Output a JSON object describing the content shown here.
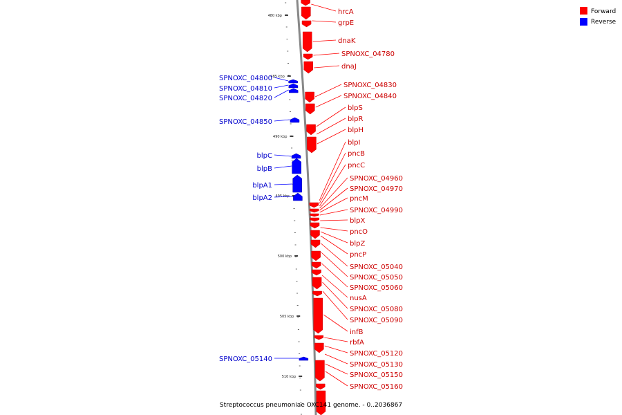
{
  "caption": "Streptococcus pneumoniae OXC141 genome. - 0..2036867",
  "legend": {
    "forward": {
      "label": "Forward",
      "color": "#ff0000"
    },
    "reverse": {
      "label": "Reverse",
      "color": "#0000ff"
    }
  },
  "backbone_color": "#888888",
  "tick_labels": [
    "480 kbp",
    "485 kbp",
    "490 kbp",
    "495 kbp",
    "500 kbp",
    "505 kbp",
    "510 kbp"
  ],
  "forward_genes": [
    "hrcA",
    "grpE",
    "dnaK",
    "SPNOXC_04780",
    "dnaJ",
    "SPNOXC_04830",
    "SPNOXC_04840",
    "blpS",
    "blpR",
    "blpH",
    "blpI",
    "pncB",
    "pncC",
    "SPNOXC_04960",
    "SPNOXC_04970",
    "pncM",
    "SPNOXC_04990",
    "blpX",
    "pncO",
    "blpZ",
    "pncP",
    "SPNOXC_05040",
    "SPNOXC_05050",
    "SPNOXC_05060",
    "nusA",
    "SPNOXC_05080",
    "SPNOXC_05090",
    "infB",
    "rbfA",
    "SPNOXC_05120",
    "SPNOXC_05130",
    "SPNOXC_05150",
    "SPNOXC_05160"
  ],
  "reverse_genes": [
    "SPNOXC_04800",
    "SPNOXC_04810",
    "SPNOXC_04820",
    "SPNOXC_04850",
    "blpC",
    "blpB",
    "blpA1",
    "blpA2",
    "SPNOXC_05140"
  ]
}
